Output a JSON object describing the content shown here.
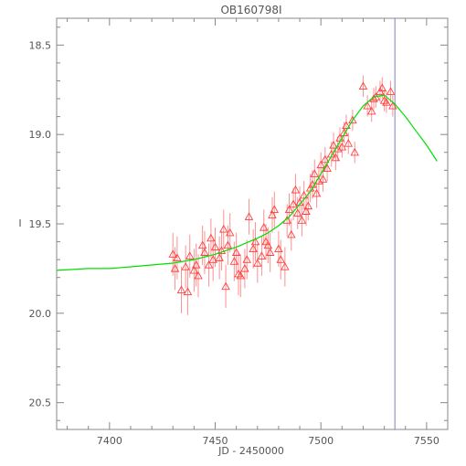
{
  "chart_data": {
    "type": "scatter",
    "title": "OB160798I",
    "xlabel": "JD - 2450000",
    "ylabel": "I",
    "xlim": [
      7375,
      7560
    ],
    "ylim": [
      20.65,
      18.35
    ],
    "y_inverted": true,
    "x_ticks": [
      7400,
      7450,
      7500,
      7550
    ],
    "y_ticks": [
      18.5,
      19.0,
      19.5,
      20.0,
      20.5
    ],
    "y_tick_labels": [
      "18.5",
      "19.0",
      "19.5",
      "20.0",
      "20.5"
    ],
    "grid": false,
    "vertical_marker": {
      "x": 7535,
      "color": "#8080c0"
    },
    "colors": {
      "points": "#ff4040",
      "errorbars": "#ff9090",
      "model": "#00e000",
      "axis": "#888888",
      "text": "#555555"
    },
    "series": [
      {
        "marker": "triangle",
        "x": [
          7430,
          7431,
          7432,
          7434,
          7436,
          7437,
          7438,
          7440,
          7441,
          7442,
          7444,
          7445,
          7447,
          7448,
          7449,
          7450,
          7452,
          7453,
          7454,
          7455,
          7456,
          7457,
          7459,
          7460,
          7461,
          7462,
          7464,
          7465,
          7466,
          7468,
          7469,
          7470,
          7472,
          7473,
          7474,
          7475,
          7476,
          7477,
          7478,
          7480,
          7481,
          7483,
          7484,
          7485,
          7486,
          7487,
          7488,
          7489,
          7490,
          7491,
          7492,
          7493,
          7494,
          7495,
          7496,
          7497,
          7498,
          7499,
          7500,
          7501,
          7502,
          7503,
          7505,
          7506,
          7507,
          7508,
          7509,
          7510,
          7511,
          7512,
          7513,
          7515,
          7516,
          7520,
          7522,
          7524,
          7525,
          7526,
          7528,
          7529,
          7530,
          7531,
          7533,
          7534
        ],
        "y": [
          19.67,
          19.75,
          19.69,
          19.87,
          19.74,
          19.88,
          19.68,
          19.76,
          19.73,
          19.79,
          19.62,
          19.66,
          19.73,
          19.58,
          19.7,
          19.63,
          19.69,
          19.65,
          19.53,
          19.85,
          19.62,
          19.55,
          19.71,
          19.66,
          19.78,
          19.79,
          19.75,
          19.7,
          19.46,
          19.64,
          19.6,
          19.72,
          19.68,
          19.52,
          19.6,
          19.62,
          19.66,
          19.45,
          19.42,
          19.64,
          19.7,
          19.74,
          19.48,
          19.42,
          19.56,
          19.39,
          19.31,
          19.44,
          19.38,
          19.48,
          19.34,
          19.43,
          19.4,
          19.3,
          19.28,
          19.22,
          19.33,
          19.26,
          19.17,
          19.25,
          19.14,
          19.19,
          19.11,
          19.06,
          19.13,
          19.08,
          19.02,
          19.07,
          18.99,
          18.95,
          19.05,
          18.92,
          19.1,
          18.73,
          18.84,
          18.87,
          18.8,
          18.79,
          18.76,
          18.74,
          18.81,
          18.82,
          18.76,
          18.84
        ],
        "err": [
          0.12,
          0.12,
          0.12,
          0.13,
          0.12,
          0.13,
          0.12,
          0.12,
          0.12,
          0.12,
          0.11,
          0.12,
          0.12,
          0.11,
          0.12,
          0.11,
          0.12,
          0.11,
          0.11,
          0.12,
          0.11,
          0.11,
          0.11,
          0.11,
          0.12,
          0.12,
          0.11,
          0.11,
          0.1,
          0.11,
          0.11,
          0.11,
          0.11,
          0.1,
          0.1,
          0.1,
          0.11,
          0.1,
          0.1,
          0.1,
          0.11,
          0.11,
          0.09,
          0.09,
          0.09,
          0.09,
          0.09,
          0.09,
          0.09,
          0.09,
          0.08,
          0.08,
          0.08,
          0.08,
          0.08,
          0.08,
          0.08,
          0.08,
          0.07,
          0.07,
          0.07,
          0.07,
          0.07,
          0.07,
          0.07,
          0.07,
          0.06,
          0.06,
          0.06,
          0.06,
          0.06,
          0.06,
          0.06,
          0.06,
          0.06,
          0.06,
          0.06,
          0.06,
          0.06,
          0.06,
          0.06,
          0.06,
          0.06,
          0.06
        ]
      },
      {
        "style": "line",
        "x": [
          7375,
          7390,
          7400,
          7410,
          7420,
          7430,
          7440,
          7450,
          7460,
          7470,
          7475,
          7480,
          7485,
          7490,
          7495,
          7500,
          7505,
          7510,
          7515,
          7520,
          7525,
          7530,
          7535,
          7540,
          7545,
          7550,
          7555
        ],
        "y": [
          19.76,
          19.75,
          19.75,
          19.74,
          19.73,
          19.72,
          19.7,
          19.67,
          19.63,
          19.58,
          19.55,
          19.51,
          19.46,
          19.39,
          19.32,
          19.22,
          19.12,
          19.02,
          18.92,
          18.84,
          18.79,
          18.78,
          18.83,
          18.9,
          18.98,
          19.06,
          19.15
        ]
      }
    ]
  }
}
